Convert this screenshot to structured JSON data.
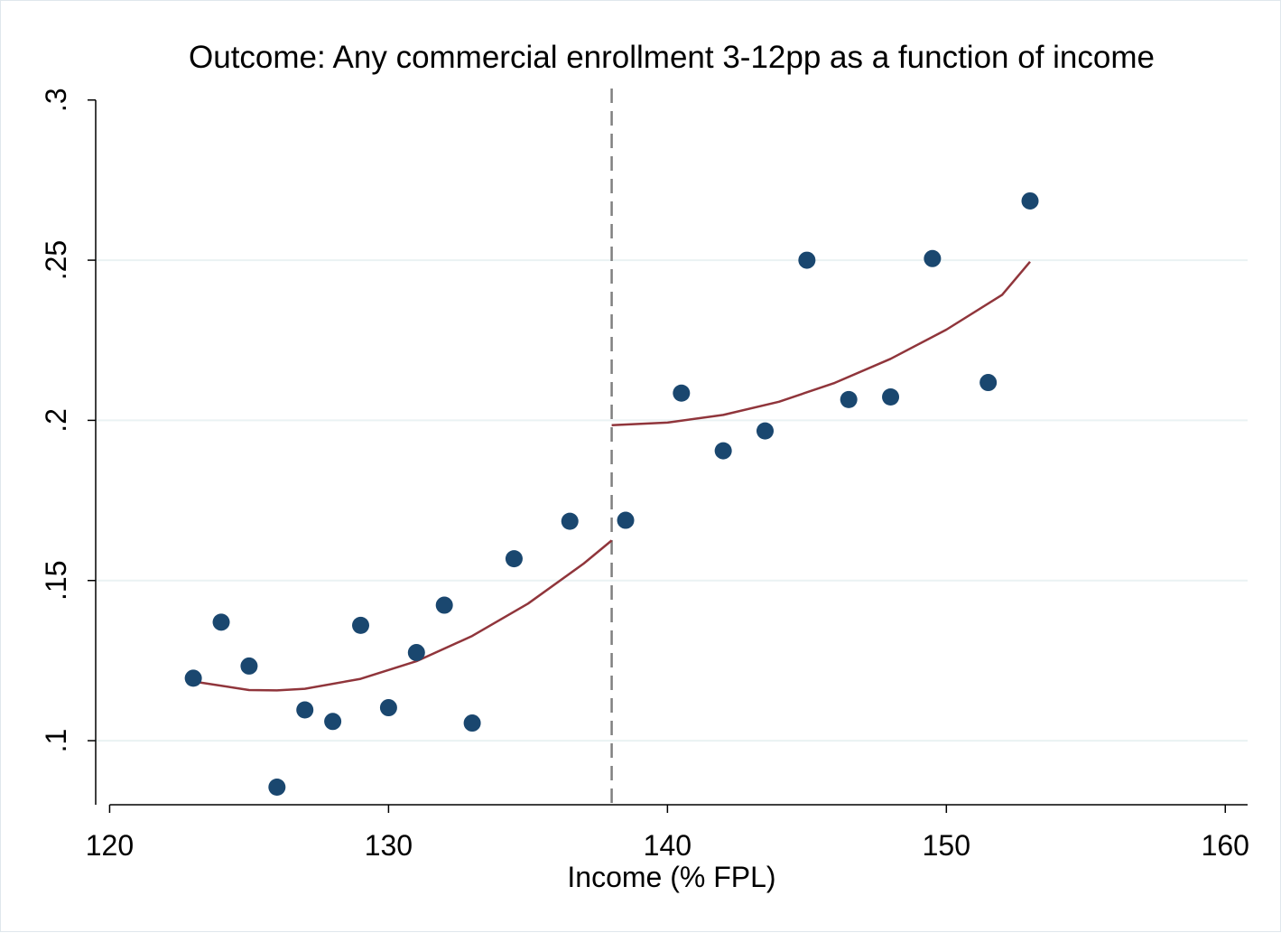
{
  "chart_data": {
    "type": "scatter",
    "title": "Outcome: Any commercial enrollment 3-12pp as a function of income",
    "xlabel": "Income (% FPL)",
    "ylabel": "",
    "xlim": [
      119.5,
      160.8
    ],
    "ylim": [
      0.08,
      0.305
    ],
    "x_ticks": [
      120,
      130,
      140,
      150,
      160
    ],
    "x_tick_labels": [
      "120",
      "130",
      "140",
      "150",
      "160"
    ],
    "y_ticks": [
      0.1,
      0.15,
      0.2,
      0.25,
      0.3
    ],
    "y_tick_labels": [
      ".1",
      ".15",
      ".2",
      ".25",
      ".3"
    ],
    "grid": "horizontal",
    "cutoff_x": 138,
    "colors": {
      "points": "#1a476f",
      "fit": "#90353b",
      "cutoff": "#808080",
      "grid": "#eaf2f3"
    },
    "series": [
      {
        "type": "scatter",
        "x": [
          123,
          124,
          125,
          126,
          127,
          128,
          129,
          130,
          131,
          132,
          133,
          134.5,
          136.5,
          138.5,
          140.5,
          142,
          143.5,
          145,
          146.5,
          148,
          149.5,
          151.5,
          153
        ],
        "y": [
          0.1195,
          0.137,
          0.1233,
          0.0855,
          0.1096,
          0.106,
          0.136,
          0.1103,
          0.1275,
          0.1423,
          0.1055,
          0.1568,
          0.1685,
          0.1688,
          0.2085,
          0.1905,
          0.1967,
          0.25,
          0.2065,
          0.2073,
          0.2505,
          0.2118,
          0.2685
        ]
      },
      {
        "type": "line",
        "segment": "below-cutoff",
        "x": [
          123,
          125,
          126,
          127,
          129,
          131,
          133,
          135,
          137,
          138
        ],
        "y": [
          0.1185,
          0.1158,
          0.1157,
          0.1162,
          0.1193,
          0.1248,
          0.1327,
          0.1428,
          0.1553,
          0.1625
        ]
      },
      {
        "type": "line",
        "segment": "above-cutoff",
        "x": [
          138,
          140,
          142,
          144,
          146,
          148,
          150,
          152,
          153
        ],
        "y": [
          0.1985,
          0.1993,
          0.2017,
          0.2058,
          0.2117,
          0.2192,
          0.2283,
          0.2392,
          0.2495
        ]
      }
    ]
  }
}
